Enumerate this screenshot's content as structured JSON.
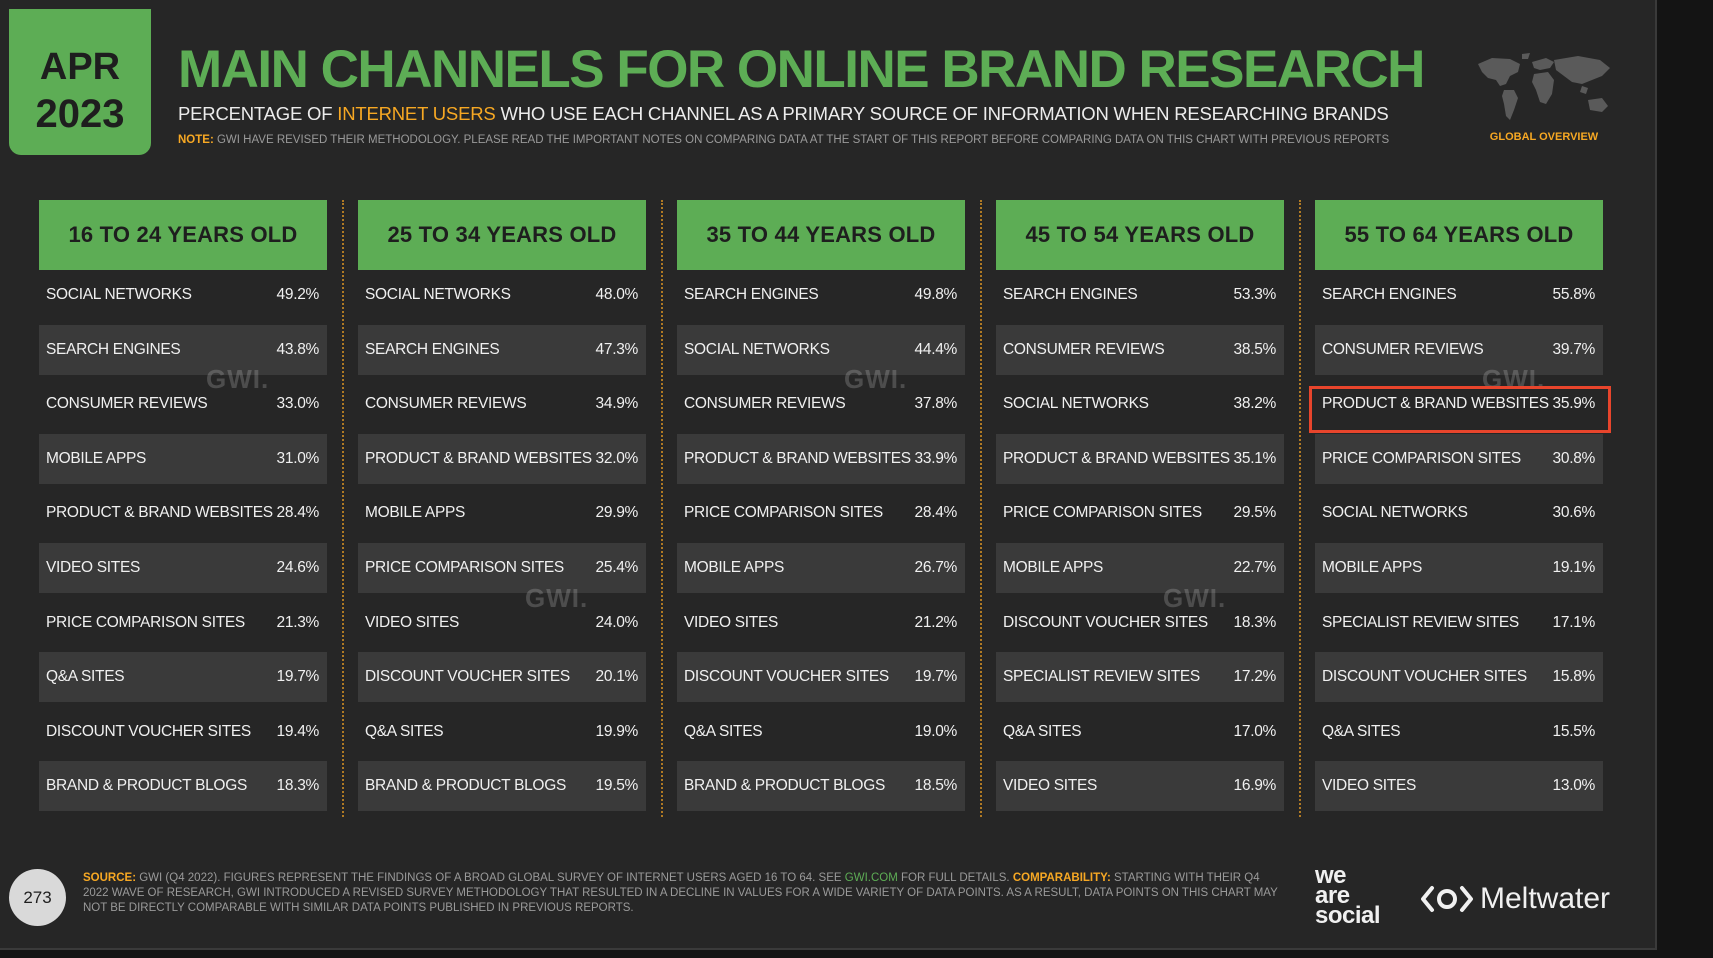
{
  "header": {
    "date_month": "APR",
    "date_year": "2023",
    "title": "MAIN CHANNELS FOR ONLINE BRAND RESEARCH",
    "subtitle_before": "PERCENTAGE OF ",
    "subtitle_highlight": "INTERNET USERS",
    "subtitle_after": " WHO USE EACH CHANNEL AS A PRIMARY SOURCE OF INFORMATION WHEN RESEARCHING BRANDS",
    "note_label": "NOTE:",
    "note_text": " GWI HAVE REVISED THEIR METHODOLOGY. PLEASE READ THE IMPORTANT NOTES ON COMPARING DATA AT THE START OF THIS REPORT BEFORE COMPARING DATA ON THIS CHART WITH PREVIOUS REPORTS",
    "global_label": "GLOBAL OVERVIEW"
  },
  "watermark": "GWI.",
  "chart_data": {
    "type": "table",
    "title": "MAIN CHANNELS FOR ONLINE BRAND RESEARCH",
    "columns": [
      {
        "name": "16 TO 24 YEARS OLD",
        "rows": [
          {
            "label": "SOCIAL NETWORKS",
            "value": "49.2%"
          },
          {
            "label": "SEARCH ENGINES",
            "value": "43.8%"
          },
          {
            "label": "CONSUMER REVIEWS",
            "value": "33.0%"
          },
          {
            "label": "MOBILE APPS",
            "value": "31.0%"
          },
          {
            "label": "PRODUCT & BRAND WEBSITES",
            "value": "28.4%"
          },
          {
            "label": "VIDEO SITES",
            "value": "24.6%"
          },
          {
            "label": "PRICE COMPARISON SITES",
            "value": "21.3%"
          },
          {
            "label": "Q&A SITES",
            "value": "19.7%"
          },
          {
            "label": "DISCOUNT VOUCHER SITES",
            "value": "19.4%"
          },
          {
            "label": "BRAND & PRODUCT BLOGS",
            "value": "18.3%"
          }
        ]
      },
      {
        "name": "25 TO 34 YEARS OLD",
        "rows": [
          {
            "label": "SOCIAL NETWORKS",
            "value": "48.0%"
          },
          {
            "label": "SEARCH ENGINES",
            "value": "47.3%"
          },
          {
            "label": "CONSUMER REVIEWS",
            "value": "34.9%"
          },
          {
            "label": "PRODUCT & BRAND WEBSITES",
            "value": "32.0%"
          },
          {
            "label": "MOBILE APPS",
            "value": "29.9%"
          },
          {
            "label": "PRICE COMPARISON SITES",
            "value": "25.4%"
          },
          {
            "label": "VIDEO SITES",
            "value": "24.0%"
          },
          {
            "label": "DISCOUNT VOUCHER SITES",
            "value": "20.1%"
          },
          {
            "label": "Q&A SITES",
            "value": "19.9%"
          },
          {
            "label": "BRAND & PRODUCT BLOGS",
            "value": "19.5%"
          }
        ]
      },
      {
        "name": "35 TO 44 YEARS OLD",
        "rows": [
          {
            "label": "SEARCH ENGINES",
            "value": "49.8%"
          },
          {
            "label": "SOCIAL NETWORKS",
            "value": "44.4%"
          },
          {
            "label": "CONSUMER REVIEWS",
            "value": "37.8%"
          },
          {
            "label": "PRODUCT & BRAND WEBSITES",
            "value": "33.9%"
          },
          {
            "label": "PRICE COMPARISON SITES",
            "value": "28.4%"
          },
          {
            "label": "MOBILE APPS",
            "value": "26.7%"
          },
          {
            "label": "VIDEO SITES",
            "value": "21.2%"
          },
          {
            "label": "DISCOUNT VOUCHER SITES",
            "value": "19.7%"
          },
          {
            "label": "Q&A SITES",
            "value": "19.0%"
          },
          {
            "label": "BRAND & PRODUCT BLOGS",
            "value": "18.5%"
          }
        ]
      },
      {
        "name": "45 TO 54 YEARS OLD",
        "rows": [
          {
            "label": "SEARCH ENGINES",
            "value": "53.3%"
          },
          {
            "label": "CONSUMER REVIEWS",
            "value": "38.5%"
          },
          {
            "label": "SOCIAL NETWORKS",
            "value": "38.2%"
          },
          {
            "label": "PRODUCT & BRAND WEBSITES",
            "value": "35.1%"
          },
          {
            "label": "PRICE COMPARISON SITES",
            "value": "29.5%"
          },
          {
            "label": "MOBILE APPS",
            "value": "22.7%"
          },
          {
            "label": "DISCOUNT VOUCHER SITES",
            "value": "18.3%"
          },
          {
            "label": "SPECIALIST REVIEW SITES",
            "value": "17.2%"
          },
          {
            "label": "Q&A SITES",
            "value": "17.0%"
          },
          {
            "label": "VIDEO SITES",
            "value": "16.9%"
          }
        ]
      },
      {
        "name": "55 TO 64 YEARS OLD",
        "rows": [
          {
            "label": "SEARCH ENGINES",
            "value": "55.8%"
          },
          {
            "label": "CONSUMER REVIEWS",
            "value": "39.7%"
          },
          {
            "label": "PRODUCT & BRAND WEBSITES",
            "value": "35.9%"
          },
          {
            "label": "PRICE COMPARISON SITES",
            "value": "30.8%"
          },
          {
            "label": "SOCIAL NETWORKS",
            "value": "30.6%"
          },
          {
            "label": "MOBILE APPS",
            "value": "19.1%"
          },
          {
            "label": "SPECIALIST REVIEW SITES",
            "value": "17.1%"
          },
          {
            "label": "DISCOUNT VOUCHER SITES",
            "value": "15.8%"
          },
          {
            "label": "Q&A SITES",
            "value": "15.5%"
          },
          {
            "label": "VIDEO SITES",
            "value": "13.0%"
          }
        ]
      }
    ],
    "highlighted": {
      "column": "55 TO 64 YEARS OLD",
      "label": "PRODUCT & BRAND WEBSITES"
    }
  },
  "footer": {
    "page_number": "273",
    "source_label": "SOURCE:",
    "source_text_1": " GWI (Q4 2022). FIGURES REPRESENT THE FINDINGS OF A BROAD GLOBAL SURVEY OF INTERNET USERS AGED 16 TO 64. SEE ",
    "source_link": "GWI.COM",
    "source_text_2": " FOR FULL DETAILS. ",
    "comparability_label": "COMPARABILITY:",
    "comparability_text": " STARTING WITH THEIR Q4 2022 WAVE OF RESEARCH, GWI INTRODUCED A REVISED SURVEY METHODOLOGY THAT RESULTED IN A DECLINE IN VALUES FOR A WIDE VARIETY OF DATA POINTS. AS A RESULT, DATA POINTS ON THIS CHART MAY NOT BE DIRECTLY COMPARABLE WITH SIMILAR DATA POINTS PUBLISHED IN PREVIOUS REPORTS.",
    "logo_we": "we",
    "logo_are": "are",
    "logo_social": "social",
    "logo_meltwater": "Meltwater"
  },
  "colors": {
    "accent_green": "#5dad55",
    "accent_orange": "#f7a823",
    "highlight_red": "#e8452c",
    "background": "#262626"
  }
}
